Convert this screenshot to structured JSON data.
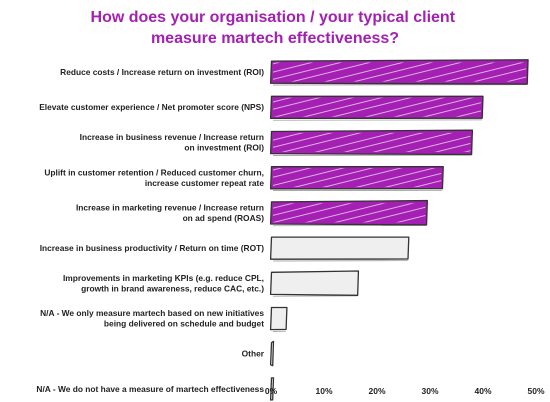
{
  "chart_data": {
    "type": "bar",
    "orientation": "horizontal",
    "title_lines": [
      "How does your organisation / your typical client",
      "measure martech effectiveness?"
    ],
    "categories": [
      [
        "Reduce costs / Increase return on investment (ROI)"
      ],
      [
        "Elevate customer experience / Net promoter score (NPS)"
      ],
      [
        "Increase in business revenue / Increase return",
        "on investment  (ROI)"
      ],
      [
        "Uplift in customer retention / Reduced customer churn,",
        "increase customer repeat rate"
      ],
      [
        "Increase in marketing revenue / Increase return",
        "on ad spend (ROAS)"
      ],
      [
        "Increase in business productivity / Return on time (ROT)"
      ],
      [
        "Improvements in marketing KPIs (e.g. reduce CPL,",
        "growth in brand awareness, reduce CAC, etc.)"
      ],
      [
        "N/A - We only measure martech based on new initiatives",
        "being delivered on schedule and budget"
      ],
      [
        "Other"
      ],
      [
        "N/A - We do not have a measure of martech effectiveness"
      ]
    ],
    "values": [
      48.5,
      40,
      38,
      32.5,
      29.5,
      26,
      16.5,
      3,
      0.4,
      0.4
    ],
    "highlight": [
      true,
      true,
      true,
      true,
      true,
      false,
      false,
      false,
      false,
      false
    ],
    "x_ticks": [
      "0%",
      "10%",
      "20%",
      "30%",
      "40%",
      "50%"
    ],
    "xlim": [
      0,
      50
    ],
    "colors": {
      "highlight": "#a320b3",
      "normal": "#efefef",
      "outline": "#333333",
      "title": "#a320b3"
    },
    "grid": false
  }
}
